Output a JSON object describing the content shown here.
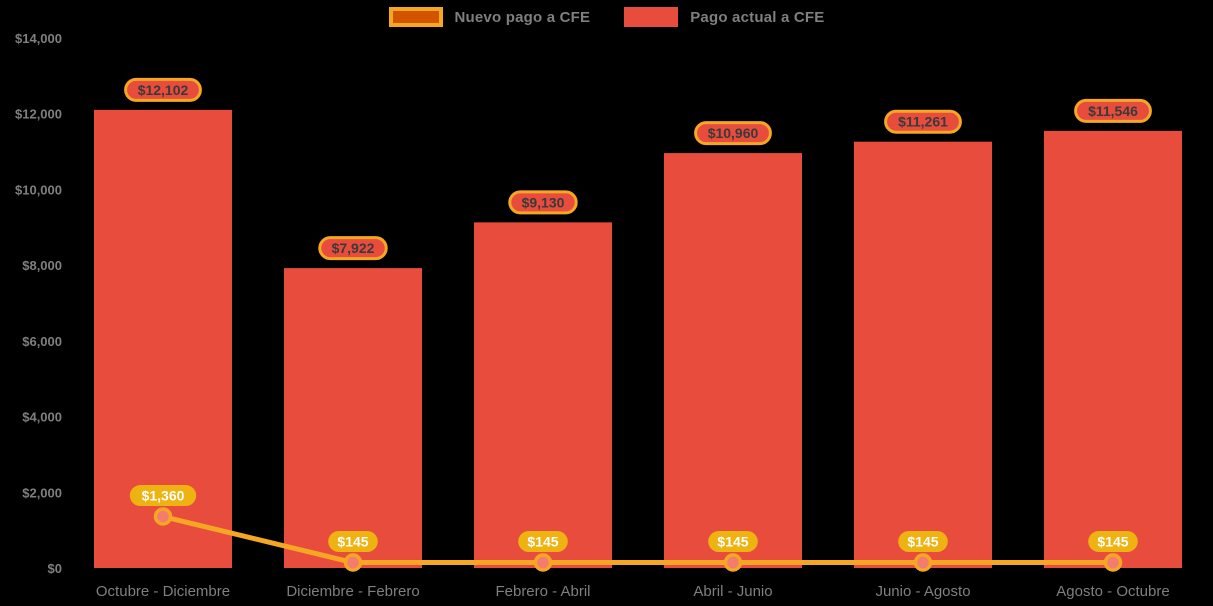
{
  "legend": {
    "items": [
      {
        "label": "Nuevo pago a CFE",
        "swatch_fill": "#d35400",
        "swatch_border": "#f5a623"
      },
      {
        "label": "Pago actual a CFE",
        "swatch_fill": "#e74c3c",
        "swatch_border": "#e74c3c"
      }
    ]
  },
  "chart_data": {
    "type": "bar",
    "subtype": "bar-with-line-overlay",
    "title": "",
    "xlabel": "",
    "ylabel": "",
    "categories": [
      "Octubre - Diciembre",
      "Diciembre - Febrero",
      "Febrero - Abril",
      "Abril - Junio",
      "Junio - Agosto",
      "Agosto - Octubre"
    ],
    "series": [
      {
        "name": "Pago actual a CFE",
        "type": "bar",
        "values": [
          12102,
          7922,
          9130,
          10960,
          11261,
          11546
        ],
        "labels": [
          "$12,102",
          "$7,922",
          "$9,130",
          "$10,960",
          "$11,261",
          "$11,546"
        ],
        "color": "#e74c3c",
        "label_bg": "#e74c3c",
        "label_border": "#f5a623",
        "label_text_color": "#3a3a3a"
      },
      {
        "name": "Nuevo pago a CFE",
        "type": "line",
        "values": [
          1360,
          145,
          145,
          145,
          145,
          145
        ],
        "labels": [
          "$1,360",
          "$145",
          "$145",
          "$145",
          "$145",
          "$145"
        ],
        "color": "#f5a623",
        "marker_fill": "#f47c6e",
        "marker_stroke": "#f5a623",
        "label_bg": "#eeb211",
        "label_text_color": "#ffffff"
      }
    ],
    "ylim": [
      0,
      14000
    ],
    "ytick_step": 2000,
    "yticks": [
      "$0",
      "$2,000",
      "$4,000",
      "$6,000",
      "$8,000",
      "$10,000",
      "$12,000",
      "$14,000"
    ],
    "axis_label_color": "#7f7f7f",
    "grid": false,
    "legend_position": "top",
    "background": "#000000"
  }
}
